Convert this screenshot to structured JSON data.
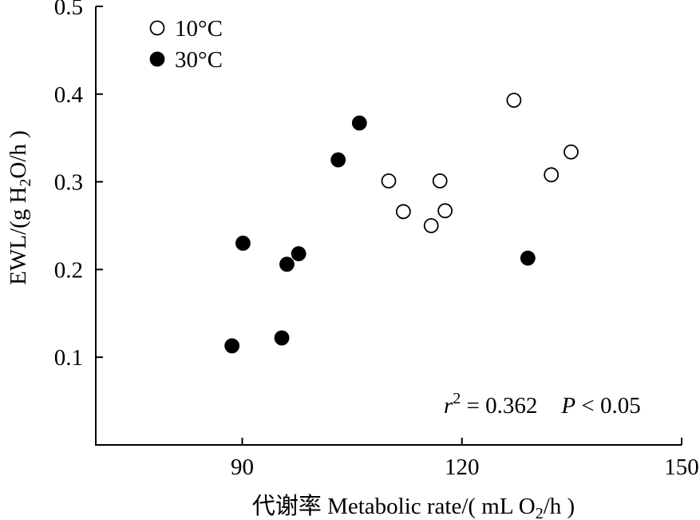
{
  "chart_data": {
    "type": "scatter",
    "xlabel": {
      "prefix": "代谢率 Metabolic rate/( mL O",
      "sub": "2",
      "suffix": "/h )"
    },
    "ylabel": {
      "prefix": "EWL/(g H",
      "sub": "2",
      "suffix": "O/h )"
    },
    "xlim": [
      70,
      150
    ],
    "ylim": [
      0.0,
      0.5
    ],
    "x_ticks": [
      90,
      120,
      150
    ],
    "x_tick_labels": [
      "90",
      "120",
      "150"
    ],
    "y_ticks": [
      0.1,
      0.2,
      0.3,
      0.4,
      0.5
    ],
    "y_tick_labels": [
      "0.1",
      "0.2",
      "0.3",
      "0.4",
      "0.5"
    ],
    "grid": false,
    "legend_position": "top-left",
    "series": [
      {
        "name": "10°C",
        "marker": "open-circle",
        "points": [
          {
            "x": 110.0,
            "y": 0.301
          },
          {
            "x": 112.0,
            "y": 0.266
          },
          {
            "x": 115.8,
            "y": 0.25
          },
          {
            "x": 117.0,
            "y": 0.301
          },
          {
            "x": 117.7,
            "y": 0.267
          },
          {
            "x": 127.1,
            "y": 0.393
          },
          {
            "x": 132.2,
            "y": 0.308
          },
          {
            "x": 134.9,
            "y": 0.334
          }
        ]
      },
      {
        "name": "30°C",
        "marker": "filled-circle",
        "points": [
          {
            "x": 88.6,
            "y": 0.113
          },
          {
            "x": 90.1,
            "y": 0.23
          },
          {
            "x": 95.4,
            "y": 0.122
          },
          {
            "x": 96.1,
            "y": 0.206
          },
          {
            "x": 97.7,
            "y": 0.218
          },
          {
            "x": 103.1,
            "y": 0.325
          },
          {
            "x": 106.0,
            "y": 0.367
          },
          {
            "x": 129.0,
            "y": 0.213
          }
        ]
      }
    ],
    "annotation": {
      "r_label": "r",
      "r_sup": "2",
      "r_value": " = 0.362",
      "p_label": "P",
      "p_value": " < 0.05"
    }
  }
}
